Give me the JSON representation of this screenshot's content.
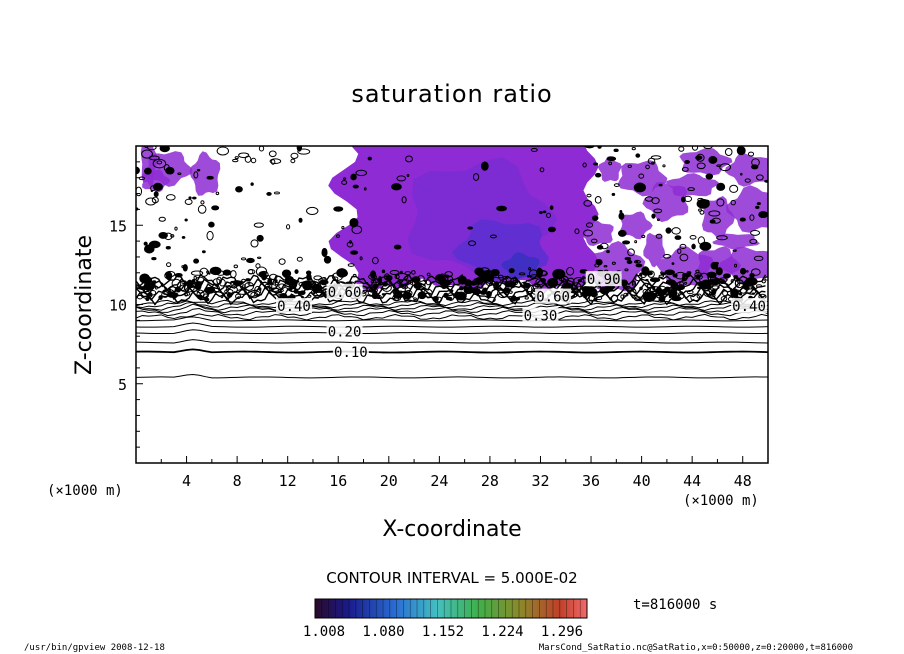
{
  "chart_data": {
    "type": "contour",
    "title": "saturation ratio",
    "xlabel": "X-coordinate",
    "ylabel": "Z-coordinate",
    "x_unit": "(×1000 m)",
    "z_unit": "(×1000 m)",
    "xlim": [
      0,
      50
    ],
    "ylim": [
      0,
      20
    ],
    "x_ticks": [
      4,
      8,
      12,
      16,
      20,
      24,
      28,
      32,
      36,
      40,
      44,
      48
    ],
    "y_ticks": [
      5,
      10,
      15
    ],
    "contour_interval_label": "CONTOUR INTERVAL = 5.000E-02",
    "contour_interval": 0.05,
    "contour_labels": [
      "0.10",
      "0.20",
      "0.30",
      "0.40",
      "0.60",
      "0.60",
      "0.90",
      "0.40"
    ],
    "contour_levels_approx": [
      {
        "label": "0.10",
        "z": 7.0
      },
      {
        "label": "0.20",
        "z": 8.2
      },
      {
        "label": "0.30",
        "z": 9.2
      },
      {
        "label": "0.40",
        "z": 9.8
      }
    ],
    "shaded_threshold": 1.0,
    "shaded_region_x": [
      17,
      36
    ],
    "colorbar_ticks": [
      "1.008",
      "1.080",
      "1.152",
      "1.224",
      "1.296"
    ],
    "time_label": "t=816000 s",
    "grid": false
  },
  "footer": {
    "left": "/usr/bin/gpview   2008-12-18",
    "right": "MarsCond_SatRatio.nc@SatRatio,x=0:50000,z=0:20000,t=816000"
  },
  "colors": {
    "fill_purple": "#8e2bd4",
    "fill_blue": "#5a2fd0",
    "fill_deep": "#3a2fc0",
    "line": "#000000"
  }
}
